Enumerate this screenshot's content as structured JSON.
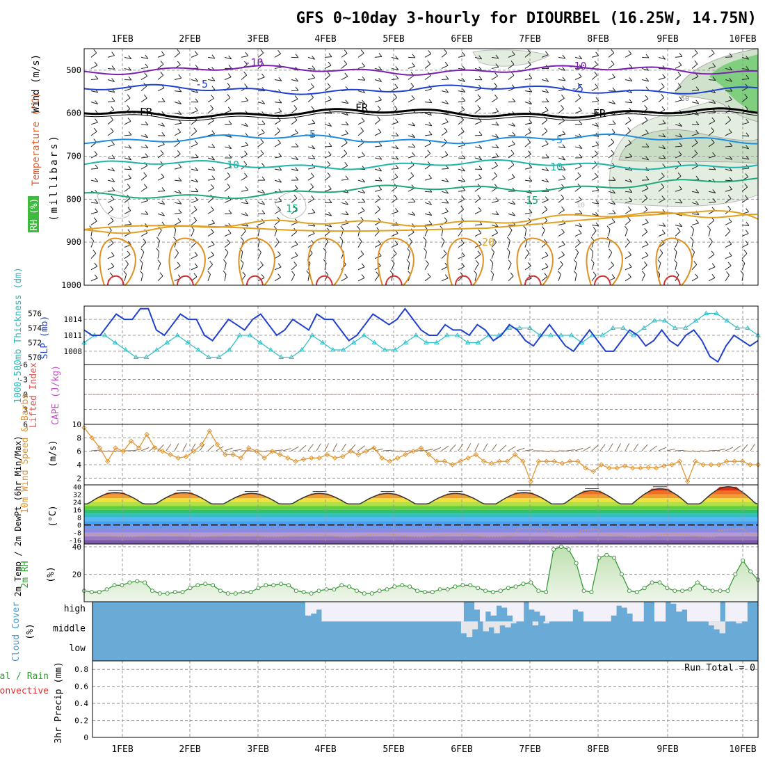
{
  "chart_data": {
    "type": "meteogram",
    "title": "GFS 0~10day 3-hourly for DIOURBEL (16.25W, 14.75N)",
    "days": [
      "1FEB",
      "2FEB",
      "3FEB",
      "4FEB",
      "5FEB",
      "6FEB",
      "7FEB",
      "8FEB",
      "9FEB",
      "10FEB"
    ],
    "panels": {
      "upper": {
        "ylabels": [
          "Wind (m/s)",
          "Temperature (°C)",
          "RH (%)"
        ],
        "axis_label": "(millibars)",
        "yticks": [
          "500",
          "600",
          "700",
          "800",
          "900",
          "1000"
        ],
        "ylim": [
          1000,
          450
        ],
        "contour_labels": [
          "-10",
          "-10",
          "-5",
          "-5",
          "FR",
          "FR",
          "FR",
          "-5",
          "-5",
          "10",
          "10",
          "15",
          "15",
          "20",
          "50",
          "10"
        ],
        "contours": [
          {
            "level": -10,
            "color": "#7a1fb0",
            "p": 500
          },
          {
            "level": -5,
            "color": "#1f3fd0",
            "p": 545
          },
          {
            "level": 0,
            "color": "#000000",
            "p": 600
          },
          {
            "level": 5,
            "color": "#1c8ce0",
            "p": 660
          },
          {
            "level": 10,
            "color": "#1cb4a8",
            "p": 720
          },
          {
            "level": 15,
            "color": "#1ca878",
            "p": 795
          },
          {
            "level": 20,
            "color": "#e0a020",
            "p": 870
          }
        ]
      },
      "thickness_slp": {
        "ylabel_left": "1000-500mb Thickness (dm)",
        "ylabel_right": "SLP (mb)",
        "thickness_ticks": [
          "576",
          "574",
          "572",
          "570"
        ],
        "thickness_range": [
          569,
          577
        ],
        "slp_ticks": [
          "1014",
          "1011",
          "1008"
        ],
        "slp_range": [
          1005.5,
          1016.5
        ],
        "slp": [
          1012,
          1011,
          1011,
          1013,
          1015,
          1014,
          1014,
          1016,
          1016,
          1012,
          1011,
          1013,
          1015,
          1014,
          1014,
          1011,
          1010,
          1012,
          1014,
          1013,
          1012,
          1014,
          1015,
          1013,
          1011,
          1012,
          1014,
          1013,
          1012,
          1015,
          1014,
          1014,
          1012,
          1010,
          1011,
          1013,
          1015,
          1014,
          1013,
          1014,
          1016,
          1014,
          1012,
          1011,
          1011,
          1013,
          1012,
          1012,
          1011,
          1013,
          1012,
          1010,
          1011,
          1013,
          1012,
          1010,
          1009,
          1011,
          1013,
          1011,
          1009,
          1008,
          1010,
          1012,
          1010,
          1008,
          1008,
          1010,
          1012,
          1011,
          1009,
          1010,
          1012,
          1010,
          1009,
          1011,
          1012,
          1010,
          1007,
          1006,
          1009,
          1011,
          1010,
          1009,
          1010
        ],
        "thickness": [
          572,
          573,
          573,
          572,
          571,
          570,
          570,
          571,
          572,
          573,
          572,
          571,
          570,
          570,
          571,
          573,
          573,
          572,
          571,
          570,
          570,
          571,
          573,
          572,
          571,
          571,
          572,
          573,
          572,
          571,
          571,
          572,
          573,
          572,
          572,
          573,
          573,
          572,
          572,
          573,
          573,
          574,
          574,
          574,
          573,
          573,
          573,
          573,
          572,
          573,
          573,
          574,
          574,
          573,
          574,
          575,
          575,
          574,
          574,
          575,
          576,
          576,
          575,
          574,
          574,
          573
        ]
      },
      "li_cape": {
        "ylabel_left": "Lifted Index",
        "ylabel_right": "CAPE (J/kg)",
        "yticks": [
          "-6",
          "-3",
          "0",
          "3",
          "6"
        ],
        "ylim": [
          6,
          -6
        ],
        "lifted_index_zero_line": 0
      },
      "wind10m": {
        "ylabel": "10m Wind Speed & Barbs",
        "units": "(m/s)",
        "yticks": [
          "10",
          "8",
          "6",
          "4",
          "2"
        ],
        "ylim": [
          1,
          10
        ],
        "speed": [
          9.5,
          8,
          6.5,
          4.5,
          6.5,
          6,
          7.5,
          6.5,
          8.5,
          6.5,
          6,
          5.5,
          5,
          5.2,
          6,
          7,
          9,
          7,
          5.5,
          5.5,
          5,
          6.5,
          6,
          5,
          6,
          5.5,
          5,
          4.5,
          4.8,
          5,
          5,
          5.5,
          5,
          5.2,
          6,
          5.5,
          6,
          6.5,
          5,
          4.5,
          5,
          5.5,
          6,
          6.5,
          5.5,
          4.5,
          4.5,
          4,
          4.5,
          5,
          5.5,
          4.5,
          4.2,
          4.5,
          4.5,
          5.5,
          4.5,
          1.5,
          4.5,
          4.5,
          4.5,
          4.2,
          4.5,
          4.5,
          3.5,
          3,
          4,
          3.5,
          3.5,
          3.8,
          3.5,
          3.5,
          3.6,
          3.5,
          3.8,
          4,
          4.5,
          1.5,
          4.5,
          4,
          4,
          4,
          4.5,
          4.5,
          4.5,
          4,
          4
        ]
      },
      "temp2m": {
        "ylabel": "2m Temp / 2m DewPt (6hr Min/Max)",
        "units": "(°C)",
        "yticks": [
          "40",
          "32",
          "24",
          "16",
          "8",
          "0",
          "-8",
          "-16"
        ],
        "ylim": [
          -20,
          42
        ],
        "day_max": [
          34,
          34,
          33,
          33,
          33,
          33,
          34,
          36,
          38,
          40
        ],
        "night_min": [
          20,
          20,
          20,
          20,
          20,
          20,
          20,
          20,
          22,
          21
        ],
        "dewpoint_mean": -11
      },
      "rh2m": {
        "ylabel": "2m RH",
        "units": "(%)",
        "yticks": [
          "40",
          "20"
        ],
        "ylim": [
          0,
          42
        ],
        "values": [
          8,
          7,
          7,
          9,
          12,
          12,
          14,
          15,
          14,
          8,
          6,
          6,
          7,
          7,
          10,
          12,
          13,
          12,
          8,
          6,
          6,
          7,
          7,
          10,
          12,
          12,
          13,
          12,
          8,
          7,
          6,
          8,
          9,
          9,
          12,
          11,
          8,
          6,
          6,
          8,
          9,
          11,
          12,
          11,
          8,
          7,
          7,
          9,
          9,
          11,
          12,
          12,
          10,
          8,
          7,
          8,
          10,
          11,
          13,
          14,
          8,
          7,
          38,
          40,
          38,
          28,
          8,
          7,
          32,
          34,
          32,
          20,
          8,
          7,
          10,
          14,
          14,
          10,
          8,
          8,
          9,
          14,
          10,
          8,
          8,
          8,
          20,
          30,
          22,
          16
        ]
      },
      "cloud_cover": {
        "ylabel": "Cloud Cover",
        "units": "(%)",
        "levels": [
          "high",
          "middle",
          "low"
        ],
        "high": [
          100,
          100,
          100,
          100,
          100,
          100,
          100,
          100,
          100,
          100,
          100,
          100,
          100,
          100,
          100,
          100,
          100,
          100,
          100,
          100,
          100,
          100,
          100,
          100,
          100,
          100,
          100,
          100,
          100,
          100,
          100,
          100,
          100,
          100,
          100,
          100,
          100,
          100,
          100,
          30,
          40,
          60,
          0,
          0,
          0,
          0,
          0,
          0,
          0,
          0,
          0,
          0,
          0,
          0,
          0,
          0,
          0,
          0,
          0,
          0,
          0,
          0,
          0,
          0,
          0,
          0,
          0,
          0,
          100,
          100,
          60,
          0,
          50,
          30,
          80,
          70,
          30,
          0,
          0,
          100,
          60,
          50,
          30,
          0,
          0,
          0,
          0,
          0,
          60,
          50,
          0,
          0,
          0,
          0,
          0,
          30,
          80,
          70,
          40,
          0,
          0,
          100,
          100,
          0,
          0,
          100,
          90,
          50,
          60,
          0,
          0,
          0,
          0,
          0,
          0,
          100,
          0,
          0,
          0,
          0,
          100,
          100
        ],
        "middle": [
          100,
          100,
          100,
          100,
          100,
          100,
          100,
          100,
          100,
          100,
          100,
          100,
          100,
          100,
          100,
          100,
          100,
          100,
          100,
          100,
          100,
          100,
          100,
          100,
          100,
          100,
          100,
          100,
          100,
          100,
          100,
          100,
          100,
          100,
          100,
          100,
          100,
          100,
          100,
          100,
          100,
          100,
          100,
          100,
          100,
          100,
          100,
          100,
          100,
          100,
          100,
          100,
          100,
          100,
          100,
          100,
          100,
          100,
          100,
          100,
          100,
          100,
          100,
          100,
          100,
          100,
          100,
          40,
          20,
          60,
          100,
          50,
          70,
          40,
          80,
          70,
          90,
          100,
          100,
          100,
          80,
          100,
          90,
          100,
          100,
          100,
          100,
          100,
          100,
          100,
          100,
          100,
          100,
          100,
          100,
          100,
          100,
          100,
          100,
          100,
          100,
          100,
          100,
          100,
          100,
          100,
          100,
          100,
          100,
          100,
          100,
          100,
          80,
          60,
          40,
          100,
          100,
          90,
          100,
          100,
          100
        ],
        "low": [
          100
        ]
      },
      "precip": {
        "ylabel": "3hr Precip (mm)",
        "legend": [
          "Total / Rain",
          "Convective"
        ],
        "yticks": [
          "0.8",
          "0.6",
          "0.4",
          "0.2",
          "0"
        ],
        "ylim": [
          0,
          0.9
        ],
        "run_total_label": "Run Total = 0"
      }
    },
    "colors": {
      "slp": "#1f3fd0",
      "thickness": "#33c0c8",
      "wind_speed": "#e09530",
      "rh_line": "#3a9a3a",
      "rh_fill": "#e6f2e0",
      "cloud": "#6aaad6",
      "cloud_clear": "#f2f0f8",
      "li_zero": "#e05050",
      "text_wind": "#000000",
      "text_temp": "#e06030",
      "text_rh": "#30a030",
      "text_mb": "#000000"
    }
  }
}
